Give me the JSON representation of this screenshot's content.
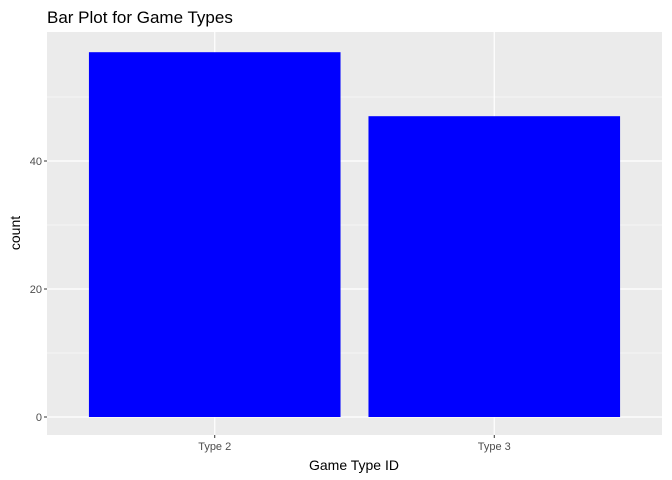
{
  "chart_data": {
    "type": "bar",
    "title": "Bar Plot for Game Types",
    "xlabel": "Game Type ID",
    "ylabel": "count",
    "categories": [
      "Type 2",
      "Type 3"
    ],
    "values": [
      57,
      47
    ],
    "ylim": [
      0,
      60
    ],
    "yticks": [
      0,
      20,
      40
    ],
    "bar_color": "#0000ff",
    "panel_background": "#ebebeb",
    "grid_color": "#ffffff",
    "grid": true,
    "legend": "none"
  }
}
